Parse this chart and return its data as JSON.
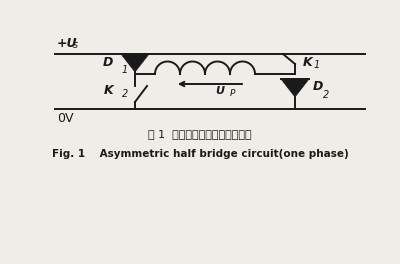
{
  "bg_color": "#f0ede8",
  "line_color": "#1a1a1a",
  "title_cn": "图 1  不对称半桥主电路（一相）",
  "title_en": "Fig. 1    Asymmetric half bridge circuit(one phase)",
  "us_label": "+U",
  "us_sub": "s",
  "ov_label": "0V",
  "d1_label": "D",
  "d1_sub": "1",
  "d2_label": "D",
  "d2_sub": "2",
  "k1_label": "K",
  "k1_sub": "1",
  "k2_label": "K",
  "k2_sub": "2",
  "up_label": "U",
  "up_sub": "P",
  "figsize": [
    4.0,
    2.64
  ],
  "dpi": 100
}
